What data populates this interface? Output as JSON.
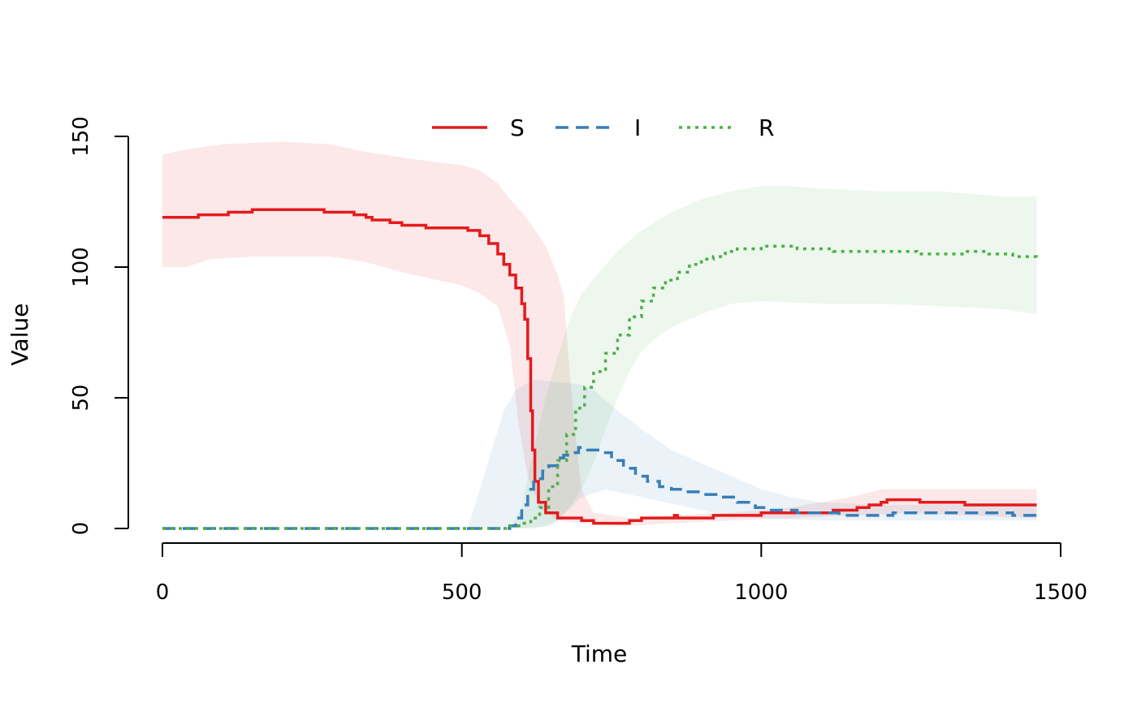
{
  "chart_data": {
    "type": "line",
    "title": "",
    "xlabel": "Time",
    "ylabel": "Value",
    "xlim": [
      0,
      1460
    ],
    "ylim": [
      0,
      150
    ],
    "x_ticks": [
      "0",
      "500",
      "1000",
      "1500"
    ],
    "y_ticks": [
      "0",
      "50",
      "100",
      "150"
    ],
    "grid": false,
    "legend_position": "top",
    "series": [
      {
        "name": "S",
        "color": "#E41A1C",
        "line_style": "solid",
        "points": [
          [
            0,
            119
          ],
          [
            60,
            119
          ],
          [
            60,
            120
          ],
          [
            110,
            120
          ],
          [
            110,
            121
          ],
          [
            150,
            121
          ],
          [
            150,
            122
          ],
          [
            270,
            122
          ],
          [
            270,
            121
          ],
          [
            310,
            121
          ],
          [
            320,
            120
          ],
          [
            340,
            119
          ],
          [
            350,
            118
          ],
          [
            380,
            117
          ],
          [
            400,
            116
          ],
          [
            420,
            116
          ],
          [
            440,
            115
          ],
          [
            480,
            115
          ],
          [
            510,
            114
          ],
          [
            530,
            112
          ],
          [
            545,
            109
          ],
          [
            560,
            105
          ],
          [
            570,
            101
          ],
          [
            580,
            97
          ],
          [
            590,
            92
          ],
          [
            600,
            86
          ],
          [
            605,
            80
          ],
          [
            610,
            65
          ],
          [
            615,
            45
          ],
          [
            618,
            30
          ],
          [
            622,
            18
          ],
          [
            628,
            10
          ],
          [
            640,
            6
          ],
          [
            660,
            4
          ],
          [
            700,
            3
          ],
          [
            720,
            3
          ],
          [
            720,
            2
          ],
          [
            780,
            2
          ],
          [
            780,
            3
          ],
          [
            800,
            4
          ],
          [
            850,
            4
          ],
          [
            855,
            5
          ],
          [
            860,
            4
          ],
          [
            900,
            4
          ],
          [
            920,
            5
          ],
          [
            990,
            5
          ],
          [
            1000,
            6
          ],
          [
            1080,
            6
          ],
          [
            1120,
            7
          ],
          [
            1150,
            7
          ],
          [
            1160,
            8
          ],
          [
            1180,
            9
          ],
          [
            1200,
            10
          ],
          [
            1210,
            11
          ],
          [
            1260,
            11
          ],
          [
            1265,
            10
          ],
          [
            1330,
            10
          ],
          [
            1340,
            9
          ],
          [
            1460,
            9
          ]
        ]
      },
      {
        "name": "I",
        "color": "#377EB8",
        "line_style": "dashed",
        "points": [
          [
            0,
            0
          ],
          [
            570,
            0
          ],
          [
            580,
            1
          ],
          [
            590,
            4
          ],
          [
            600,
            9
          ],
          [
            610,
            15
          ],
          [
            620,
            19
          ],
          [
            635,
            22
          ],
          [
            645,
            24
          ],
          [
            660,
            27
          ],
          [
            670,
            28
          ],
          [
            680,
            29
          ],
          [
            695,
            31
          ],
          [
            710,
            30
          ],
          [
            730,
            29
          ],
          [
            750,
            26
          ],
          [
            770,
            23
          ],
          [
            790,
            20
          ],
          [
            810,
            18
          ],
          [
            830,
            16
          ],
          [
            850,
            15
          ],
          [
            870,
            14
          ],
          [
            900,
            13
          ],
          [
            930,
            12
          ],
          [
            960,
            10
          ],
          [
            990,
            8
          ],
          [
            1010,
            7
          ],
          [
            1040,
            7
          ],
          [
            1060,
            6
          ],
          [
            1100,
            6
          ],
          [
            1130,
            5
          ],
          [
            1200,
            5
          ],
          [
            1220,
            6
          ],
          [
            1400,
            6
          ],
          [
            1420,
            5
          ],
          [
            1460,
            5
          ]
        ]
      },
      {
        "name": "R",
        "color": "#4DAF4A",
        "line_style": "dotted",
        "points": [
          [
            0,
            0
          ],
          [
            560,
            0
          ],
          [
            575,
            1
          ],
          [
            600,
            2
          ],
          [
            615,
            4
          ],
          [
            630,
            8
          ],
          [
            645,
            16
          ],
          [
            660,
            26
          ],
          [
            675,
            36
          ],
          [
            690,
            46
          ],
          [
            705,
            54
          ],
          [
            720,
            60
          ],
          [
            740,
            67
          ],
          [
            760,
            74
          ],
          [
            780,
            81
          ],
          [
            800,
            87
          ],
          [
            820,
            92
          ],
          [
            840,
            95
          ],
          [
            860,
            98
          ],
          [
            880,
            101
          ],
          [
            900,
            103
          ],
          [
            920,
            104
          ],
          [
            940,
            106
          ],
          [
            960,
            107
          ],
          [
            980,
            107
          ],
          [
            1000,
            108
          ],
          [
            1030,
            108
          ],
          [
            1060,
            107
          ],
          [
            1100,
            107
          ],
          [
            1120,
            106
          ],
          [
            1200,
            106
          ],
          [
            1260,
            105
          ],
          [
            1300,
            105
          ],
          [
            1340,
            106
          ],
          [
            1380,
            105
          ],
          [
            1420,
            104
          ],
          [
            1460,
            103
          ]
        ]
      }
    ],
    "bands": [
      {
        "name": "S",
        "color": "#E41A1C",
        "opacity": 0.1,
        "lower": [
          [
            0,
            100
          ],
          [
            40,
            100
          ],
          [
            80,
            103
          ],
          [
            150,
            104
          ],
          [
            280,
            104
          ],
          [
            340,
            102
          ],
          [
            400,
            98
          ],
          [
            460,
            95
          ],
          [
            500,
            93
          ],
          [
            530,
            90
          ],
          [
            560,
            85
          ],
          [
            580,
            70
          ],
          [
            595,
            40
          ],
          [
            610,
            20
          ],
          [
            630,
            8
          ],
          [
            660,
            3
          ],
          [
            700,
            2
          ],
          [
            780,
            1
          ],
          [
            850,
            2
          ],
          [
            950,
            3
          ],
          [
            1050,
            4
          ],
          [
            1150,
            5
          ],
          [
            1250,
            6
          ],
          [
            1350,
            5
          ],
          [
            1460,
            4
          ]
        ],
        "upper": [
          [
            0,
            143
          ],
          [
            40,
            145
          ],
          [
            100,
            147
          ],
          [
            200,
            148
          ],
          [
            280,
            147
          ],
          [
            340,
            144
          ],
          [
            400,
            142
          ],
          [
            460,
            140
          ],
          [
            500,
            139
          ],
          [
            530,
            137
          ],
          [
            560,
            132
          ],
          [
            580,
            126
          ],
          [
            600,
            121
          ],
          [
            620,
            115
          ],
          [
            640,
            108
          ],
          [
            660,
            97
          ],
          [
            670,
            89
          ],
          [
            680,
            60
          ],
          [
            690,
            35
          ],
          [
            700,
            15
          ],
          [
            720,
            6
          ],
          [
            780,
            4
          ],
          [
            850,
            5
          ],
          [
            950,
            6
          ],
          [
            1050,
            8
          ],
          [
            1150,
            12
          ],
          [
            1200,
            15
          ],
          [
            1300,
            15
          ],
          [
            1460,
            15
          ]
        ]
      },
      {
        "name": "I",
        "color": "#377EB8",
        "opacity": 0.1,
        "lower": [
          [
            0,
            0
          ],
          [
            600,
            0
          ],
          [
            650,
            1
          ],
          [
            700,
            12
          ],
          [
            740,
            15
          ],
          [
            800,
            12
          ],
          [
            860,
            9
          ],
          [
            920,
            6
          ],
          [
            1000,
            4
          ],
          [
            1100,
            3
          ],
          [
            1200,
            3
          ],
          [
            1300,
            3
          ],
          [
            1460,
            3
          ]
        ],
        "upper": [
          [
            0,
            0
          ],
          [
            510,
            0
          ],
          [
            530,
            15
          ],
          [
            550,
            30
          ],
          [
            570,
            45
          ],
          [
            590,
            53
          ],
          [
            620,
            57
          ],
          [
            660,
            56
          ],
          [
            700,
            55
          ],
          [
            720,
            53
          ],
          [
            760,
            45
          ],
          [
            800,
            38
          ],
          [
            850,
            30
          ],
          [
            900,
            25
          ],
          [
            950,
            20
          ],
          [
            1000,
            15
          ],
          [
            1050,
            12
          ],
          [
            1100,
            10
          ],
          [
            1200,
            9
          ],
          [
            1300,
            9
          ],
          [
            1460,
            9
          ]
        ]
      },
      {
        "name": "R",
        "color": "#4DAF4A",
        "opacity": 0.1,
        "lower": [
          [
            0,
            0
          ],
          [
            620,
            0
          ],
          [
            640,
            1
          ],
          [
            660,
            3
          ],
          [
            680,
            8
          ],
          [
            700,
            15
          ],
          [
            720,
            25
          ],
          [
            740,
            38
          ],
          [
            760,
            50
          ],
          [
            780,
            60
          ],
          [
            800,
            68
          ],
          [
            830,
            74
          ],
          [
            860,
            78
          ],
          [
            900,
            82
          ],
          [
            950,
            86
          ],
          [
            1000,
            87
          ],
          [
            1100,
            86
          ],
          [
            1200,
            86
          ],
          [
            1300,
            85
          ],
          [
            1400,
            84
          ],
          [
            1460,
            82
          ]
        ],
        "upper": [
          [
            0,
            0
          ],
          [
            580,
            0
          ],
          [
            600,
            8
          ],
          [
            620,
            30
          ],
          [
            640,
            50
          ],
          [
            660,
            66
          ],
          [
            680,
            80
          ],
          [
            700,
            90
          ],
          [
            730,
            98
          ],
          [
            760,
            106
          ],
          [
            800,
            114
          ],
          [
            850,
            121
          ],
          [
            900,
            126
          ],
          [
            950,
            129
          ],
          [
            1000,
            131
          ],
          [
            1050,
            131
          ],
          [
            1100,
            130
          ],
          [
            1200,
            129
          ],
          [
            1300,
            129
          ],
          [
            1400,
            127
          ],
          [
            1460,
            127
          ]
        ]
      }
    ]
  }
}
